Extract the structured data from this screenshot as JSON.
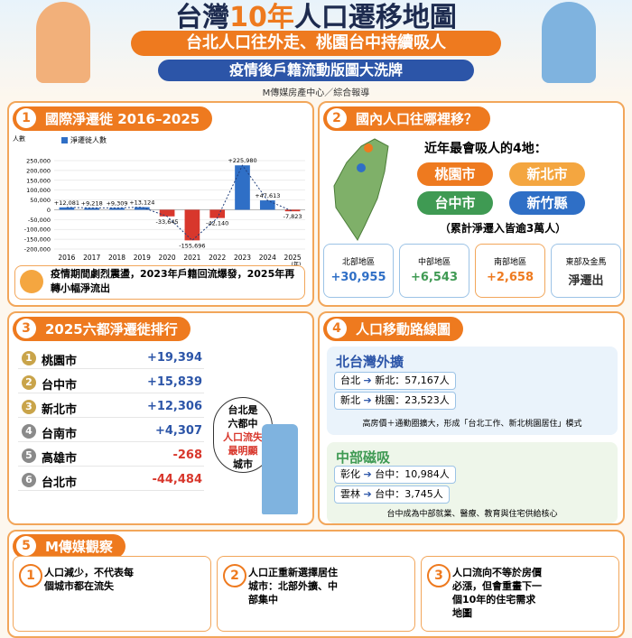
{
  "header": {
    "title_parts": [
      "台灣",
      "10年",
      "人口遷移地圖"
    ],
    "subtitle": "台北人口往外走、桃園台中持續吸人",
    "tagline": "疫情後戶籍流動版圖大洗牌",
    "byline": "M傳媒房產中心／綜合報導"
  },
  "section1": {
    "number": "1",
    "title": "國際淨遷徙 2016–2025",
    "chart": {
      "type": "bar",
      "y_label": "人數",
      "legend": "淨遷徙人數",
      "x_unit": "(年)",
      "categories": [
        "2016",
        "2017",
        "2018",
        "2019",
        "2020",
        "2021",
        "2022",
        "2023",
        "2024",
        "2025"
      ],
      "values": [
        12081,
        9218,
        9309,
        13124,
        -33645,
        -155696,
        -42140,
        225980,
        47613,
        -7823
      ],
      "value_labels": [
        "+12,081",
        "+9,218",
        "+9,309",
        "+13,124",
        "-33,645",
        "-155,696",
        "-42,140",
        "+225,980",
        "+47,613",
        "-7,823"
      ],
      "ylim": [
        -200000,
        250000
      ],
      "yticks": [
        {
          "value": 250000,
          "label": "250,000"
        },
        {
          "value": 200000,
          "label": "200,000"
        },
        {
          "value": 150000,
          "label": "150,000"
        },
        {
          "value": 100000,
          "label": "100,000"
        },
        {
          "value": 50000,
          "label": "50,000"
        },
        0,
        {
          "value": -50000,
          "label": "-50,000"
        },
        {
          "value": -100000,
          "label": "-100,000"
        },
        {
          "value": -150000,
          "label": "-150,000"
        },
        {
          "value": -200000,
          "label": "-200,000"
        }
      ],
      "positive_color": "#2f6fc6",
      "negative_color": "#d8372c",
      "line_color": "#1f3d7a"
    },
    "note": "疫情期間劇烈震盪，2023年戶籍回流爆發，2025年再轉小幅淨流出"
  },
  "section2": {
    "number": "2",
    "title": "國內人口往哪裡移？",
    "lead": "近年最會吸人的4地：",
    "cities": [
      "桃園市",
      "新北市",
      "台中市",
      "新竹縣"
    ],
    "footnote": "（累計淨遷入皆逾3萬人）",
    "regions": [
      {
        "name": "北部地區",
        "value": "+30,955"
      },
      {
        "name": "中部地區",
        "value": "+6,543"
      },
      {
        "name": "南部地區",
        "value": "+2,658"
      },
      {
        "name": "東部及金馬",
        "value": "淨遷出"
      }
    ]
  },
  "section3": {
    "number": "3",
    "title": "2025六都淨遷徙排行",
    "rows": [
      [
        "1",
        "桃園市",
        "+19,394"
      ],
      [
        "2",
        "台中市",
        "+15,839"
      ],
      [
        "3",
        "新北市",
        "+12,306"
      ],
      [
        "4",
        "台南市",
        "+4,307"
      ],
      [
        "5",
        "高雄市",
        "-268"
      ],
      [
        "6",
        "台北市",
        "-44,484"
      ]
    ],
    "bubble": [
      "台北是",
      "六都中",
      "人口流失",
      "最明顯",
      "城市"
    ]
  },
  "section4": {
    "number": "4",
    "title": "人口移動路線圖",
    "north": {
      "title": "北台灣外擴",
      "routes": [
        [
          "台北",
          "新北",
          "57,167人"
        ],
        [
          "新北",
          "桃園",
          "23,523人"
        ]
      ],
      "note": "高房價＋通勤圈擴大，形成「台北工作、新北桃園居住」模式"
    },
    "central": {
      "title": "中部磁吸",
      "routes": [
        [
          "彰化",
          "台中",
          "10,984人"
        ],
        [
          "雲林",
          "台中",
          "3,745人"
        ]
      ],
      "note": "台中成為中部就業、醫療、教育與住宅供給核心"
    }
  },
  "section5": {
    "number": "5",
    "title": "M傳媒觀察",
    "items": [
      {
        "number": "1",
        "text": "人口減少，不代表每個城市都在流失"
      },
      {
        "number": "2",
        "text": "人口正重新選擇居住城市：北部外擴、中部集中"
      },
      {
        "number": "3",
        "text": "人口流向不等於房價必漲，但會重畫下一個10年的住宅需求地圖"
      }
    ]
  }
}
